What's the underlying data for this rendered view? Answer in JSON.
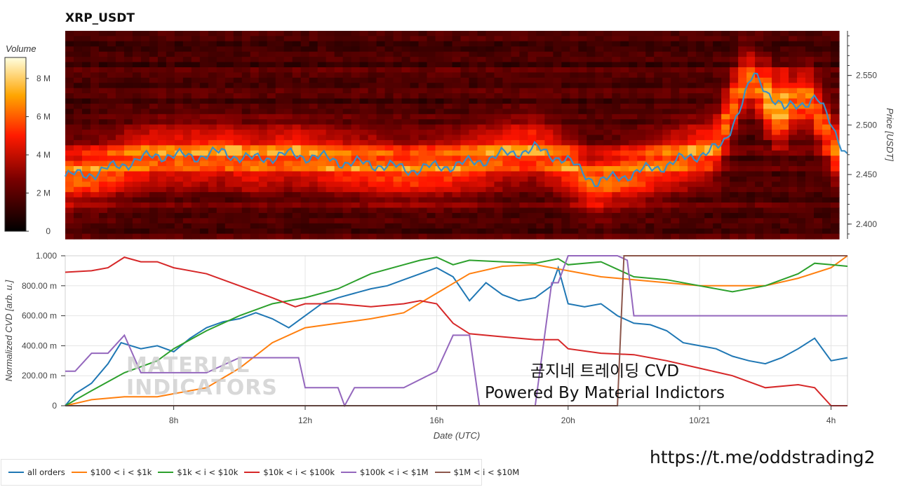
{
  "title": "XRP_USDT",
  "watermark": {
    "line1": "곰지네 트레이딩 CVD",
    "line2": "Powered By Material Indictors"
  },
  "logo_text": {
    "line1": "MATERIAL",
    "line2": "INDICATORS"
  },
  "link": "https://t.me/oddstrading2",
  "colorbar": {
    "title": "Volume",
    "ticks": [
      "0",
      "2 M",
      "4 M",
      "6 M",
      "8 M"
    ]
  },
  "price_axis": {
    "label": "Price [USDT]",
    "ticks": [
      "2.400",
      "2.450",
      "2.500",
      "2.550"
    ]
  },
  "cvd_axis": {
    "label": "Normalized CVD [arb. u.]",
    "ticks": [
      "0",
      "200.00 m",
      "400.00 m",
      "600.00 m",
      "800.00 m",
      "1.000"
    ]
  },
  "x_axis": {
    "label": "Date (UTC)",
    "ticks": [
      "8h",
      "12h",
      "16h",
      "20h",
      "10/21",
      "4h"
    ]
  },
  "legend": [
    {
      "label": "all orders",
      "color": "#1f77b4"
    },
    {
      "label": "$100 < i < $1k",
      "color": "#ff7f0e"
    },
    {
      "label": "$1k < i < $10k",
      "color": "#2ca02c"
    },
    {
      "label": "$10k < i < $100k",
      "color": "#d62728"
    },
    {
      "label": "$100k < i < $1M",
      "color": "#9467bd"
    },
    {
      "label": "$1M < i < $10M",
      "color": "#8c564b"
    }
  ],
  "chart_data": [
    {
      "type": "heatmap",
      "title": "XRP_USDT",
      "ylabel": "Price [USDT]",
      "ylim": [
        2.385,
        2.595
      ],
      "colorbar_range": [
        0,
        9000000
      ],
      "series": [
        {
          "name": "price",
          "x": [
            0,
            4,
            8,
            12,
            16,
            20,
            24,
            28,
            32,
            36,
            40,
            44,
            48,
            52,
            56,
            60,
            64,
            68,
            72,
            76,
            80,
            84,
            88,
            92,
            96,
            100
          ],
          "values": [
            2.448,
            2.452,
            2.462,
            2.47,
            2.468,
            2.472,
            2.465,
            2.47,
            2.468,
            2.462,
            2.46,
            2.455,
            2.458,
            2.462,
            2.47,
            2.476,
            2.465,
            2.442,
            2.45,
            2.458,
            2.468,
            2.478,
            2.55,
            2.515,
            2.528,
            2.47
          ]
        }
      ]
    },
    {
      "type": "line",
      "xlabel": "Date (UTC)",
      "ylabel": "Normalized CVD [arb. u.]",
      "ylim": [
        0,
        1
      ],
      "x_ticks": [
        "8h",
        "12h",
        "16h",
        "20h",
        "10/21",
        "4h"
      ],
      "series": [
        {
          "name": "all orders",
          "x": [
            4.7,
            5.0,
            5.5,
            6.0,
            6.4,
            7.0,
            7.5,
            8.0,
            8.5,
            9.0,
            9.5,
            10.0,
            10.5,
            11.0,
            11.5,
            12.0,
            12.5,
            13.0,
            13.5,
            14.0,
            14.5,
            15.0,
            15.5,
            16.0,
            16.5,
            17.0,
            17.5,
            18.0,
            18.5,
            19.0,
            19.5,
            19.7,
            20.0,
            20.5,
            21.0,
            21.5,
            22.0,
            22.5,
            23.0,
            23.5,
            24.0,
            24.5,
            25.0,
            25.5,
            26.0,
            26.5,
            27.0,
            27.5,
            28.0,
            28.5
          ],
          "values": [
            0.0,
            0.08,
            0.15,
            0.28,
            0.42,
            0.38,
            0.4,
            0.36,
            0.45,
            0.52,
            0.56,
            0.58,
            0.62,
            0.58,
            0.52,
            0.6,
            0.68,
            0.72,
            0.75,
            0.78,
            0.8,
            0.84,
            0.88,
            0.92,
            0.86,
            0.7,
            0.82,
            0.74,
            0.7,
            0.72,
            0.8,
            0.92,
            0.68,
            0.66,
            0.68,
            0.6,
            0.55,
            0.54,
            0.5,
            0.42,
            0.4,
            0.38,
            0.33,
            0.3,
            0.28,
            0.32,
            0.38,
            0.45,
            0.3,
            0.32
          ]
        },
        {
          "name": "$100 < i < $1k",
          "x": [
            4.7,
            5.5,
            6.5,
            7.5,
            8.0,
            9.0,
            10.0,
            11.0,
            12.0,
            13.0,
            14.0,
            15.0,
            16.0,
            17.0,
            18.0,
            19.0,
            20.0,
            21.0,
            22.0,
            23.0,
            24.0,
            25.0,
            26.0,
            27.0,
            28.0,
            28.5
          ],
          "values": [
            0.0,
            0.04,
            0.06,
            0.06,
            0.08,
            0.12,
            0.25,
            0.42,
            0.52,
            0.55,
            0.58,
            0.62,
            0.75,
            0.88,
            0.93,
            0.94,
            0.9,
            0.86,
            0.84,
            0.82,
            0.8,
            0.8,
            0.8,
            0.85,
            0.92,
            1.0
          ]
        },
        {
          "name": "$1k < i < $10k",
          "x": [
            4.7,
            5.5,
            6.5,
            7.5,
            8.0,
            9.0,
            10.0,
            11.0,
            12.0,
            13.0,
            14.0,
            15.0,
            15.5,
            16.0,
            16.5,
            17.0,
            18.0,
            19.0,
            19.7,
            20.0,
            21.0,
            22.0,
            23.0,
            24.0,
            25.0,
            26.0,
            27.0,
            27.5,
            28.0,
            28.5
          ],
          "values": [
            0.0,
            0.1,
            0.22,
            0.3,
            0.38,
            0.5,
            0.6,
            0.68,
            0.72,
            0.78,
            0.88,
            0.94,
            0.97,
            0.99,
            0.94,
            0.97,
            0.96,
            0.95,
            0.98,
            0.94,
            0.96,
            0.86,
            0.84,
            0.8,
            0.76,
            0.8,
            0.88,
            0.95,
            0.94,
            0.93
          ]
        },
        {
          "name": "$10k < i < $100k",
          "x": [
            4.7,
            5.5,
            6.0,
            6.5,
            7.0,
            7.5,
            8.0,
            9.0,
            10.0,
            11.0,
            11.7,
            12.0,
            13.0,
            14.0,
            15.0,
            15.5,
            16.0,
            16.5,
            17.0,
            18.0,
            19.0,
            19.7,
            20.0,
            21.0,
            22.0,
            23.0,
            24.0,
            25.0,
            26.0,
            27.0,
            27.5,
            28.0,
            28.5
          ],
          "values": [
            0.89,
            0.9,
            0.92,
            0.99,
            0.96,
            0.96,
            0.92,
            0.88,
            0.8,
            0.72,
            0.66,
            0.68,
            0.68,
            0.66,
            0.68,
            0.7,
            0.68,
            0.55,
            0.48,
            0.46,
            0.44,
            0.44,
            0.38,
            0.35,
            0.34,
            0.3,
            0.25,
            0.2,
            0.12,
            0.14,
            0.12,
            0.0,
            0.0
          ]
        },
        {
          "name": "$100k < i < $1M",
          "x": [
            4.7,
            5.0,
            5.5,
            6.0,
            6.5,
            7.0,
            9.0,
            10.0,
            11.0,
            11.8,
            12.0,
            13.0,
            13.2,
            13.5,
            14.0,
            15.0,
            16.0,
            16.5,
            17.0,
            17.3,
            17.5,
            18.0,
            19.0,
            19.5,
            19.7,
            20.0,
            21.0,
            21.5,
            21.8,
            22.0,
            23.0,
            26.0,
            28.5
          ],
          "values": [
            0.23,
            0.23,
            0.35,
            0.35,
            0.47,
            0.22,
            0.22,
            0.32,
            0.32,
            0.32,
            0.12,
            0.12,
            0.0,
            0.12,
            0.12,
            0.12,
            0.23,
            0.47,
            0.47,
            0.0,
            0.0,
            0.0,
            0.0,
            0.82,
            0.82,
            1.0,
            1.0,
            1.0,
            0.97,
            0.6,
            0.6,
            0.6,
            0.6
          ]
        },
        {
          "name": "$1M < i < $10M",
          "x": [
            4.7,
            20.0,
            21.5,
            21.7,
            22.0,
            28.5
          ],
          "values": [
            0.0,
            0.0,
            0.0,
            1.0,
            1.0,
            1.0
          ]
        }
      ]
    }
  ]
}
